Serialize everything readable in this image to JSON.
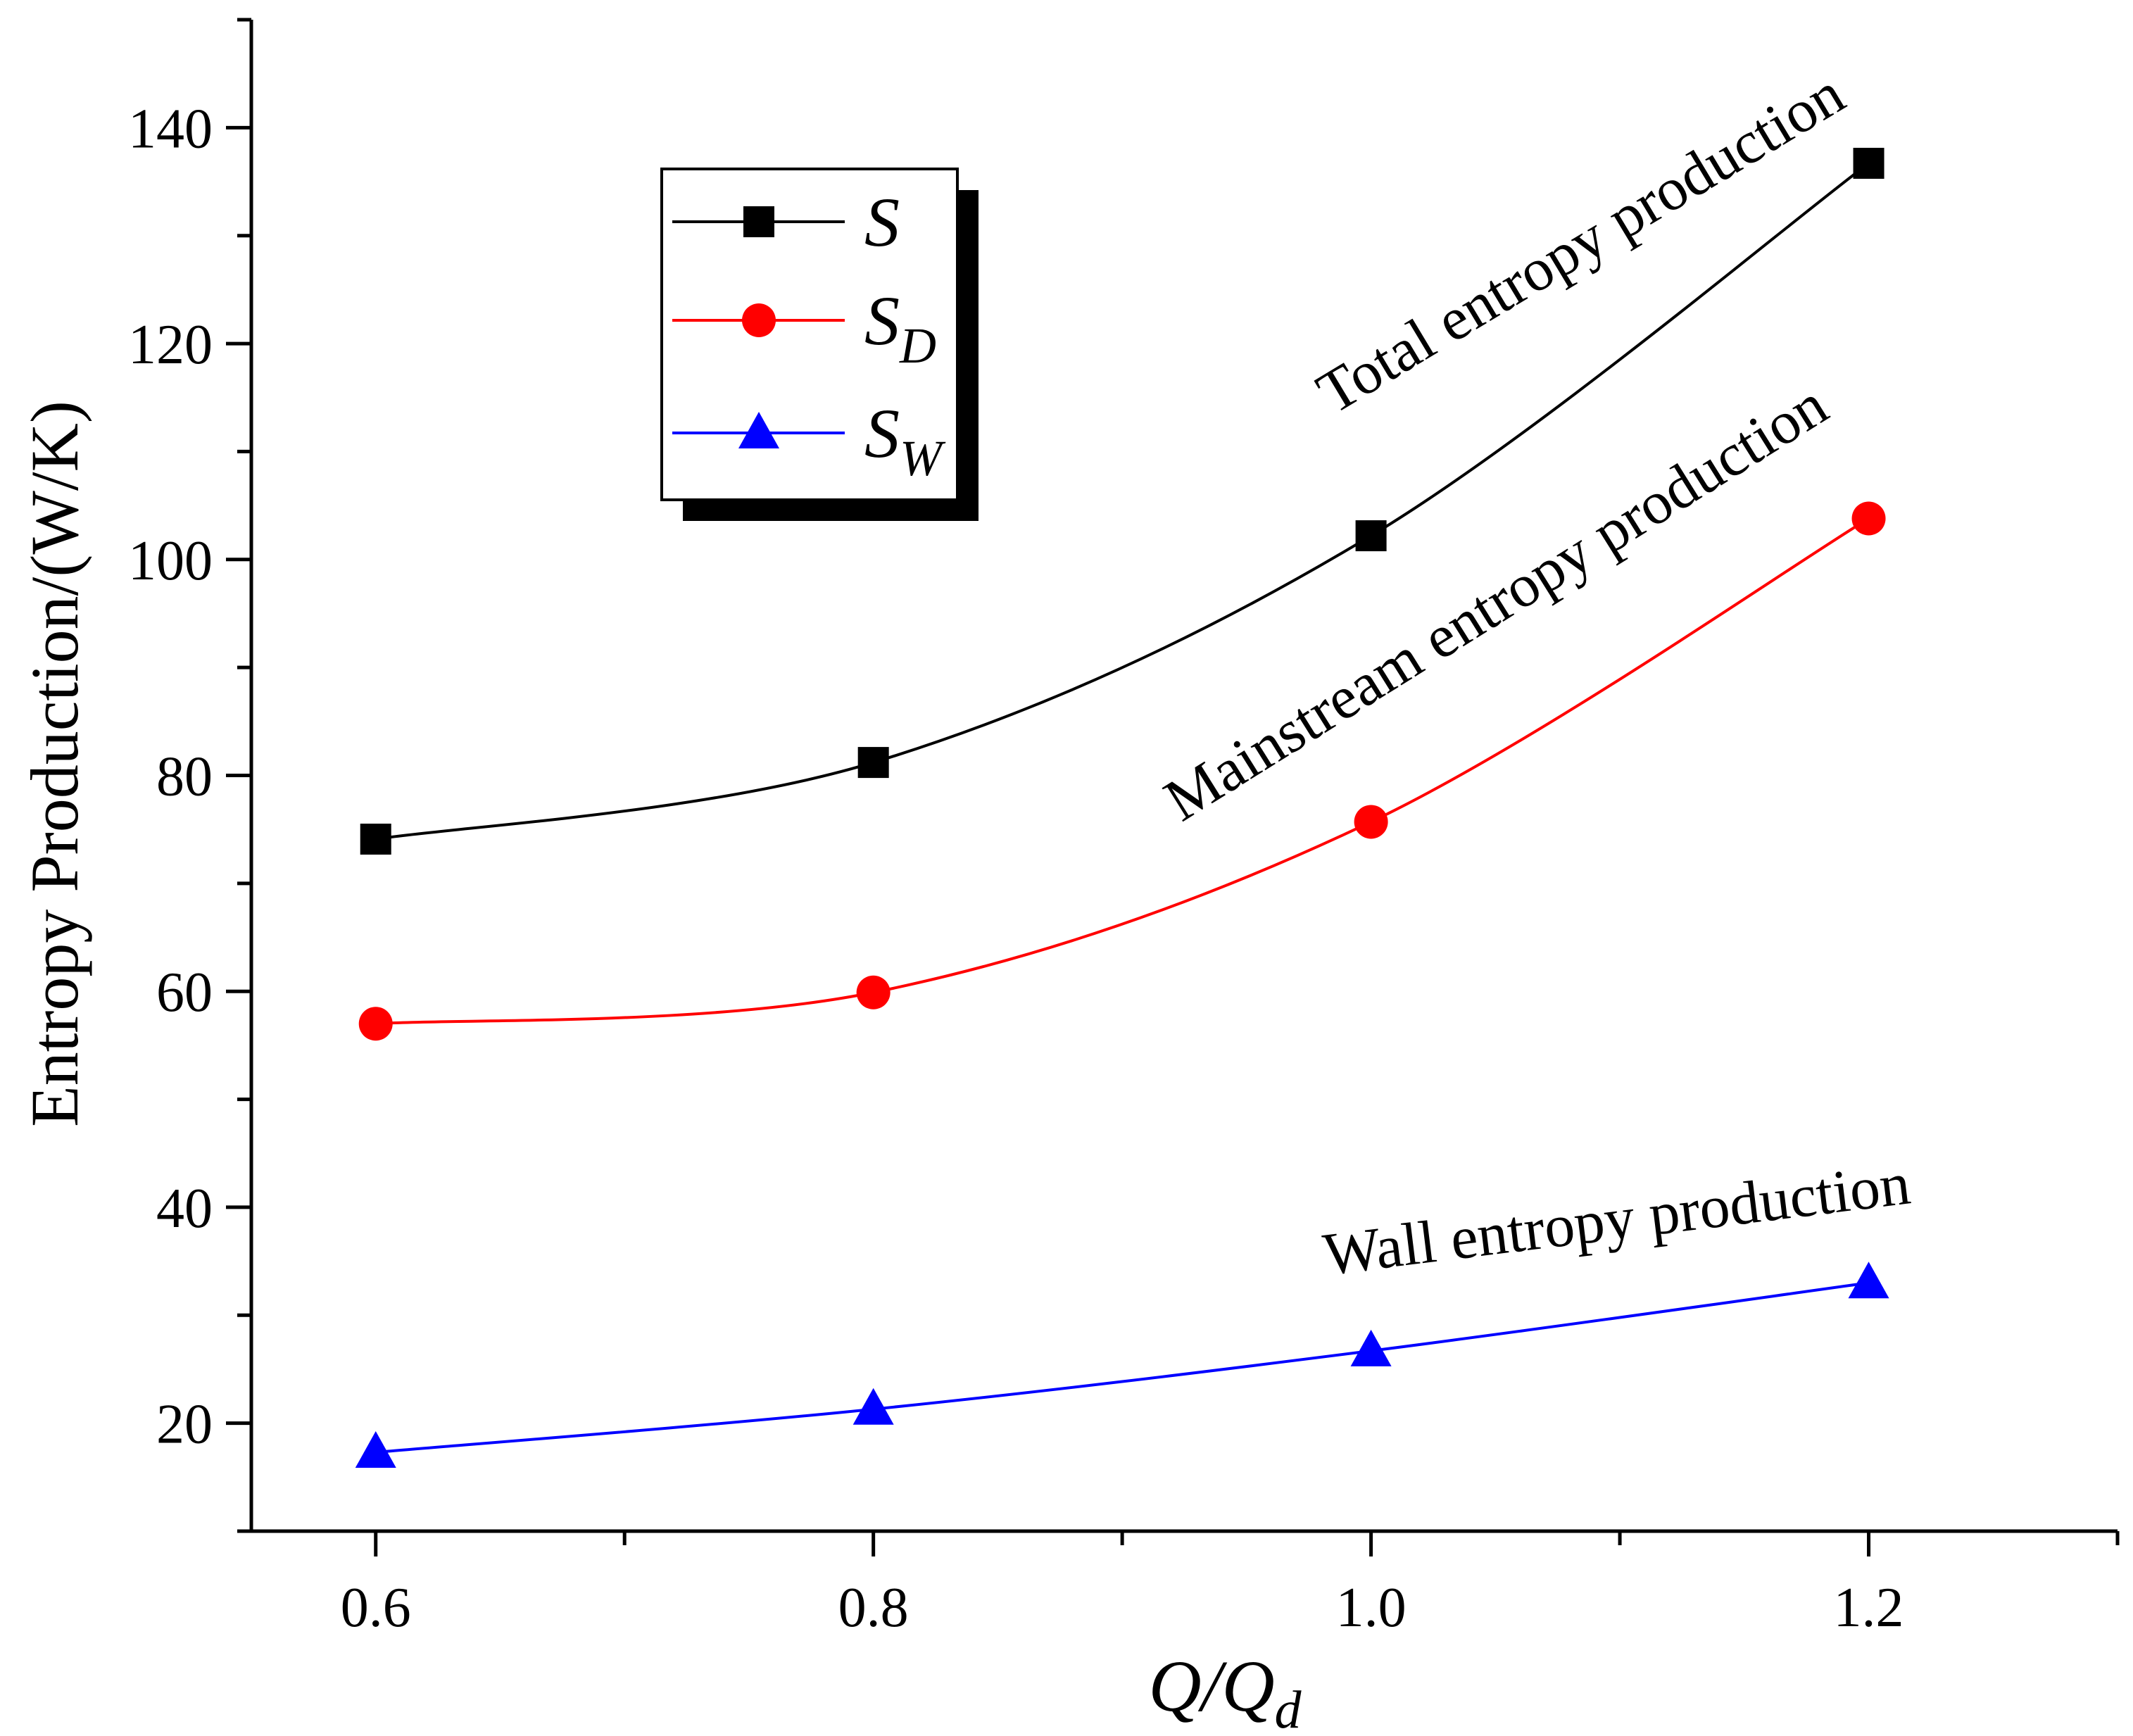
{
  "chart_data": {
    "type": "line",
    "title": "",
    "xlabel": {
      "main": "Q/Q",
      "sub": "d"
    },
    "ylabel": "Entropy Production/(W/K)",
    "xlim": [
      0.55,
      1.3
    ],
    "ylim": [
      10,
      150
    ],
    "x_ticks": [
      0.6,
      0.8,
      1.0,
      1.2
    ],
    "x_tick_labels": [
      "0.6",
      "0.8",
      "1.0",
      "1.2"
    ],
    "x_minor_ticks": [
      0.7,
      0.9,
      1.1,
      1.3
    ],
    "y_ticks": [
      20,
      40,
      60,
      80,
      100,
      120,
      140
    ],
    "y_tick_labels": [
      "20",
      "40",
      "60",
      "80",
      "100",
      "120",
      "140"
    ],
    "y_minor_ticks": [
      10,
      30,
      50,
      70,
      90,
      110,
      130,
      150
    ],
    "x": [
      0.6,
      0.8,
      1.0,
      1.2
    ],
    "series": [
      {
        "name": "S",
        "sub": "",
        "color": "#000000",
        "marker": "square",
        "values": [
          74.1,
          81.2,
          102.2,
          136.7
        ]
      },
      {
        "name": "S",
        "sub": "D",
        "color": "#ff0000",
        "marker": "circle",
        "values": [
          57.0,
          59.9,
          75.7,
          103.8
        ]
      },
      {
        "name": "S",
        "sub": "W",
        "color": "#0000ff",
        "marker": "triangle",
        "values": [
          17.3,
          21.3,
          26.7,
          33.0
        ]
      }
    ],
    "annotations": [
      "Total entropy production",
      "Mainstream entropy production",
      "Wall entropy production"
    ],
    "legend_position": "top-left"
  }
}
